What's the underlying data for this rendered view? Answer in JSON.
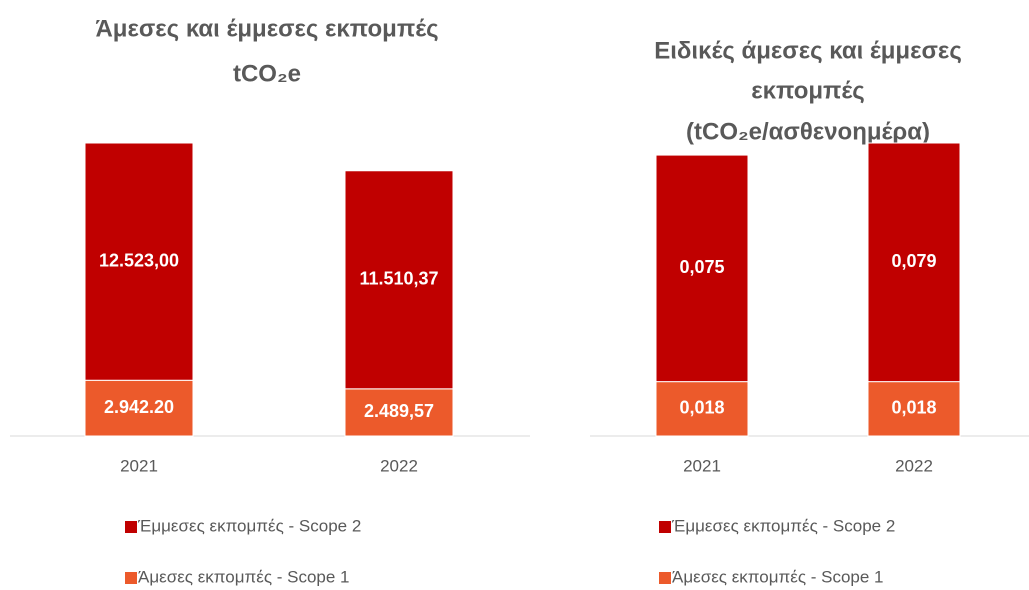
{
  "chart_data": [
    {
      "type": "bar",
      "stacked": true,
      "title": [
        "Άμεσες και έμμεσες εκπομπές",
        "tCO₂e"
      ],
      "categories": [
        "2021",
        "2022"
      ],
      "series": [
        {
          "name": "Άμεσες εκπομπές - Scope 1",
          "color": "#ec5a2b",
          "values": [
            2942.2,
            2489.57
          ],
          "value_labels": [
            "2.942.20",
            "2.489,57"
          ]
        },
        {
          "name": "Έμμεσες εκπομπές - Scope 2",
          "color": "#c00000",
          "values": [
            12523.0,
            11510.37
          ],
          "value_labels": [
            "12.523,00",
            "11.510,37"
          ]
        }
      ]
    },
    {
      "type": "bar",
      "stacked": true,
      "title": [
        "Ειδικές άμεσες και έμμεσες",
        "εκπομπές",
        "(tCO₂e/ασθενοημέρα)"
      ],
      "categories": [
        "2021",
        "2022"
      ],
      "series": [
        {
          "name": "Άμεσες εκπομπές - Scope 1",
          "color": "#ec5a2b",
          "values": [
            0.018,
            0.018
          ],
          "value_labels": [
            "0,018",
            "0,018"
          ]
        },
        {
          "name": "Έμμεσες εκπομπές - Scope 2",
          "color": "#c00000",
          "values": [
            0.075,
            0.079
          ],
          "value_labels": [
            "0,075",
            "0,079"
          ]
        }
      ]
    }
  ]
}
